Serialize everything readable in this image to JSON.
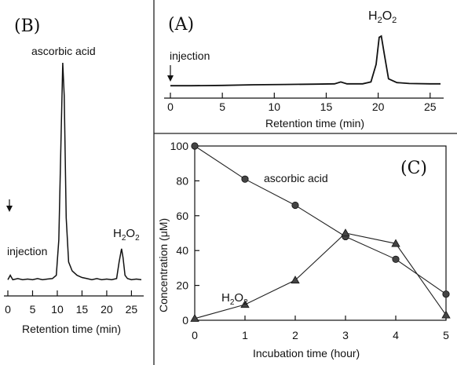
{
  "chart_data": [
    {
      "panel": "(A)",
      "type": "line",
      "xlabel": "Retention time (min)",
      "xlim": [
        0,
        26
      ],
      "xticks": [
        0,
        5,
        10,
        15,
        20,
        25
      ],
      "ylim": [
        0,
        100
      ],
      "annotations": [
        {
          "text": "H2O2",
          "x": 20.2
        },
        {
          "text": "injection",
          "x": 0
        }
      ],
      "series": [
        {
          "x": [
            0,
            2,
            5,
            8,
            11,
            14,
            15.8,
            16.4,
            17,
            18.5,
            19.3,
            19.8,
            20.1,
            20.3,
            20.6,
            21,
            21.8,
            23,
            25,
            26
          ],
          "y": [
            1,
            1,
            1.5,
            2.5,
            3,
            3.5,
            4,
            7,
            4,
            4,
            7,
            35,
            78,
            80,
            50,
            12,
            6,
            4.5,
            4,
            4
          ]
        }
      ]
    },
    {
      "panel": "(B)",
      "type": "line",
      "xlabel": "Retention time (min)",
      "xlim": [
        0,
        27
      ],
      "xticks": [
        0,
        5,
        10,
        15,
        20,
        25
      ],
      "ylim": [
        0,
        100
      ],
      "annotations": [
        {
          "text": "ascorbic acid",
          "x": 11.2
        },
        {
          "text": "H2O2",
          "x": 23
        },
        {
          "text": "injection",
          "x": 0
        }
      ],
      "series": [
        {
          "x": [
            0,
            0.5,
            1,
            2,
            3,
            4,
            5,
            6,
            7,
            8,
            9,
            9.8,
            10.3,
            10.8,
            11.1,
            11.4,
            11.8,
            12.3,
            13,
            14,
            15,
            16,
            17,
            18,
            19,
            20,
            21,
            22,
            22.5,
            23,
            23.3,
            23.7,
            24.2,
            25,
            26,
            27
          ],
          "y": [
            2,
            4,
            2,
            2.5,
            2,
            2.3,
            2,
            2.5,
            2,
            2.3,
            2.5,
            4,
            20,
            70,
            100,
            85,
            30,
            10,
            6,
            4,
            3,
            2.5,
            2,
            2.5,
            2,
            2.3,
            2,
            2.5,
            10,
            16,
            12,
            4,
            2.5,
            2,
            2.3,
            2
          ]
        }
      ]
    },
    {
      "panel": "(C)",
      "type": "line",
      "xlabel": "Incubation  time  (hour)",
      "ylabel": "Concentration  (μM)",
      "xlim": [
        0,
        5
      ],
      "ylim": [
        0,
        100
      ],
      "xticks": [
        0,
        1,
        2,
        3,
        4,
        5
      ],
      "yticks": [
        0,
        20,
        40,
        60,
        80,
        100
      ],
      "categories": [
        0,
        1,
        2,
        3,
        4,
        5
      ],
      "series": [
        {
          "name": "ascorbic   acid",
          "marker": "circle",
          "values": [
            100,
            81,
            66,
            48,
            35,
            15
          ]
        },
        {
          "name": "H2O2",
          "marker": "triangle",
          "values": [
            1,
            9,
            23,
            50,
            44,
            3
          ]
        }
      ]
    }
  ],
  "labels": {
    "panel_a": "(A)",
    "panel_b": "(B)",
    "panel_c": "(C)",
    "injection": "injection",
    "h2o2_main": "H",
    "h2o2_sub": "2",
    "h2o2_o": "O",
    "retention_time": "Retention time (min)",
    "ascorbic_acid": "ascorbic acid",
    "ascorbic_acid_c": "ascorbic   acid",
    "incubation_time": "Incubation  time  (hour)",
    "concentration": "Concentration  (μM)"
  }
}
